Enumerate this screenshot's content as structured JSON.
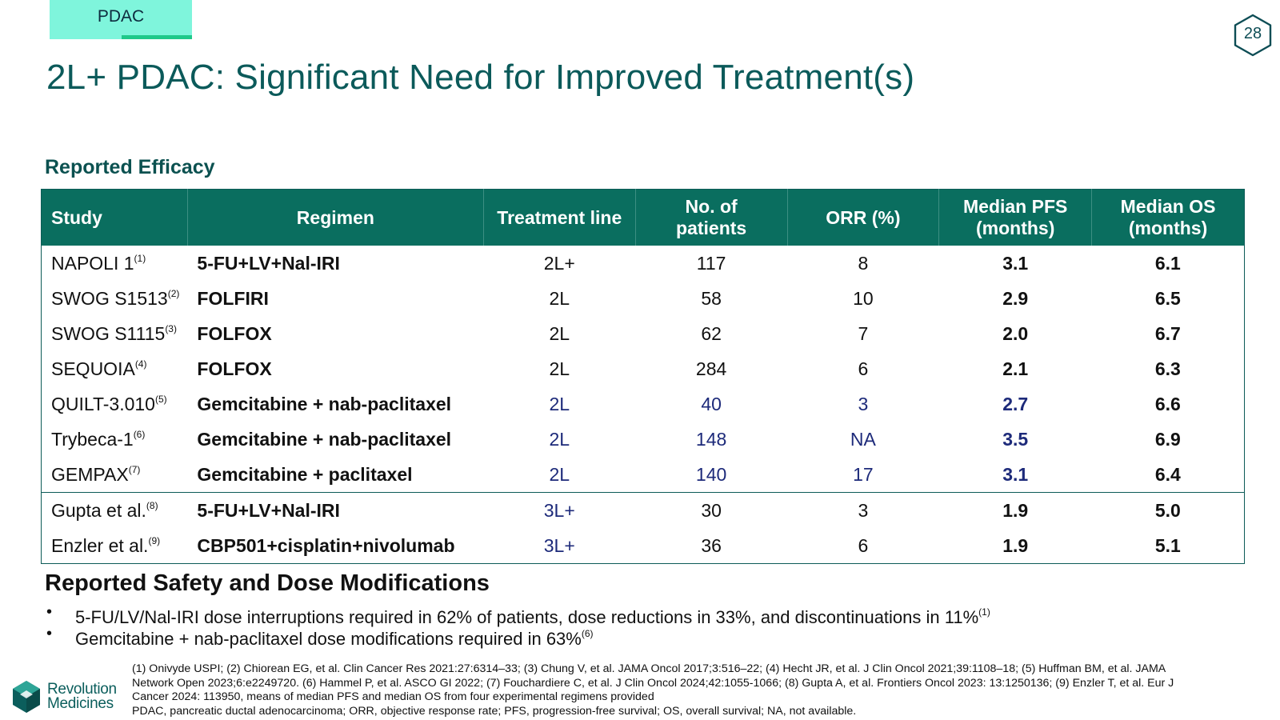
{
  "tag": {
    "label": "PDAC"
  },
  "page_number": "28",
  "title": "2L+ PDAC: Significant Need for Improved Treatment(s)",
  "efficacy": {
    "label": "Reported Efficacy",
    "headers": {
      "study": "Study",
      "regimen": "Regimen",
      "line": "Treatment line",
      "patients_1": "No. of",
      "patients_2": "patients",
      "orr": "ORR (%)",
      "pfs_1": "Median PFS",
      "pfs_2": "(months)",
      "os_1": "Median OS",
      "os_2": "(months)"
    },
    "rows": [
      {
        "study": "NAPOLI 1",
        "ref": "(1)",
        "regimen": "5-FU+LV+Nal-IRI",
        "line": "2L+",
        "patients": "117",
        "orr": "8",
        "pfs": "3.1",
        "os": "6.1"
      },
      {
        "study": "SWOG S1513",
        "ref": "(2)",
        "regimen": "FOLFIRI",
        "line": "2L",
        "patients": "58",
        "orr": "10",
        "pfs": "2.9",
        "os": "6.5"
      },
      {
        "study": "SWOG S1115",
        "ref": "(3)",
        "regimen": "FOLFOX",
        "line": "2L",
        "patients": "62",
        "orr": "7",
        "pfs": "2.0",
        "os": "6.7"
      },
      {
        "study": "SEQUOIA",
        "ref": "(4)",
        "regimen": "FOLFOX",
        "line": "2L",
        "patients": "284",
        "orr": "6",
        "pfs": "2.1",
        "os": "6.3"
      },
      {
        "study": "QUILT-3.010",
        "ref": "(5)",
        "regimen": "Gemcitabine + nab-paclitaxel",
        "line": "2L",
        "patients": "40",
        "orr": "3",
        "pfs": "2.7",
        "os": "6.6"
      },
      {
        "study": "Trybeca-1",
        "ref": "(6)",
        "regimen": "Gemcitabine + nab-paclitaxel",
        "line": "2L",
        "patients": "148",
        "orr": "NA",
        "pfs": "3.5",
        "os": "6.9"
      },
      {
        "study": "GEMPAX",
        "ref": "(7)",
        "regimen": "Gemcitabine + paclitaxel",
        "line": "2L",
        "patients": "140",
        "orr": "17",
        "pfs": "3.1",
        "os": "6.4"
      },
      {
        "study": "Gupta et al.",
        "ref": "(8)",
        "regimen": "5-FU+LV+Nal-IRI",
        "line": "3L+",
        "patients": "30",
        "orr": "3",
        "pfs": "1.9",
        "os": "5.0"
      },
      {
        "study": "Enzler et al.",
        "ref": "(9)",
        "regimen": "CBP501+cisplatin+nivolumab",
        "line": "3L+",
        "patients": "36",
        "orr": "6",
        "pfs": "1.9",
        "os": "5.1"
      }
    ]
  },
  "safety": {
    "title": "Reported Safety and Dose Modifications",
    "bullets": [
      {
        "text": "5-FU/LV/Nal-IRI dose interruptions required in 62% of patients, dose reductions in 33%, and discontinuations in 11%",
        "ref": "(1)"
      },
      {
        "text": "Gemcitabine + nab-paclitaxel dose modifications required in 63%",
        "ref": "(6)"
      }
    ]
  },
  "footnotes": {
    "refs": "(1) Onivyde USPI; (2) Chiorean EG, et al. Clin Cancer Res 2021:27:6314–33; (3) Chung V, et al. JAMA Oncol 2017;3:516–22; (4) Hecht JR, et al. J Clin Oncol 2021;39:1108–18; (5) Huffman BM, et al. JAMA Network Open 2023;6:e2249720. (6) Hammel P, et al. ASCO GI 2022; (7) Fouchardiere C, et al. J Clin Oncol 2024;42:1055-1066; (8) Gupta A, et al. Frontiers Oncol 2023: 13:1250136; (9) Enzler T, et al. Eur J Cancer 2024: 113950, means of median PFS and median OS from four experimental regimens provided",
    "abbreviations": "PDAC, pancreatic ductal adenocarcinoma; ORR, objective response rate; PFS, progression-free survival; OS, overall survival; NA, not available."
  },
  "logo": {
    "line1": "Revolution",
    "line2": "Medicines",
    "icon": "revolution-medicines-logo-icon"
  },
  "colors": {
    "teal_header": "#0a6e5f",
    "mint_tag": "#7ff5dc",
    "title": "#0b5a5a",
    "navy": "#1d2a7a"
  }
}
